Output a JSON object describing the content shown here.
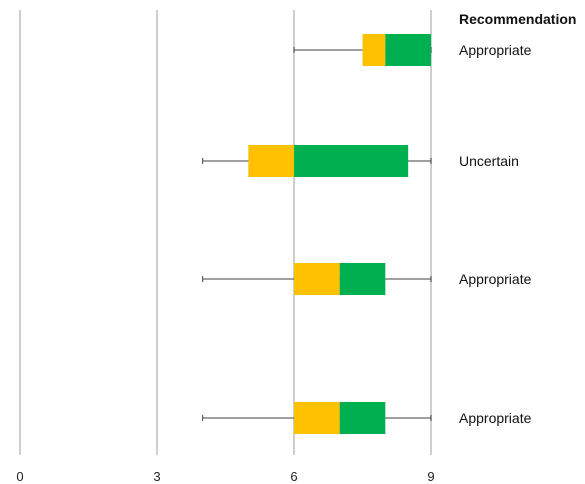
{
  "chart_data": {
    "type": "boxplot",
    "orientation": "horizontal",
    "xlim": [
      0,
      9
    ],
    "xticks": [
      0,
      3,
      6,
      9
    ],
    "x_tick_labels": [
      "0",
      "3",
      "6",
      "9"
    ],
    "grid": true,
    "recommendation_header": "Recommendation",
    "colors": {
      "lower_box": "#FFC000",
      "upper_box": "#00B050",
      "gridline": "#bfbfbf",
      "whisker": "#404040"
    },
    "rows": [
      {
        "min": 6,
        "q1": 7.5,
        "median": 8,
        "q3": 9,
        "max": 9,
        "recommendation": "Appropriate"
      },
      {
        "min": 4,
        "q1": 5,
        "median": 6,
        "q3": 8.5,
        "max": 9,
        "recommendation": "Uncertain"
      },
      {
        "min": 4,
        "q1": 6,
        "median": 7,
        "q3": 8,
        "max": 9,
        "recommendation": "Appropriate"
      },
      {
        "min": 4,
        "q1": 6,
        "median": 7,
        "q3": 8,
        "max": 9,
        "recommendation": "Appropriate"
      }
    ]
  }
}
